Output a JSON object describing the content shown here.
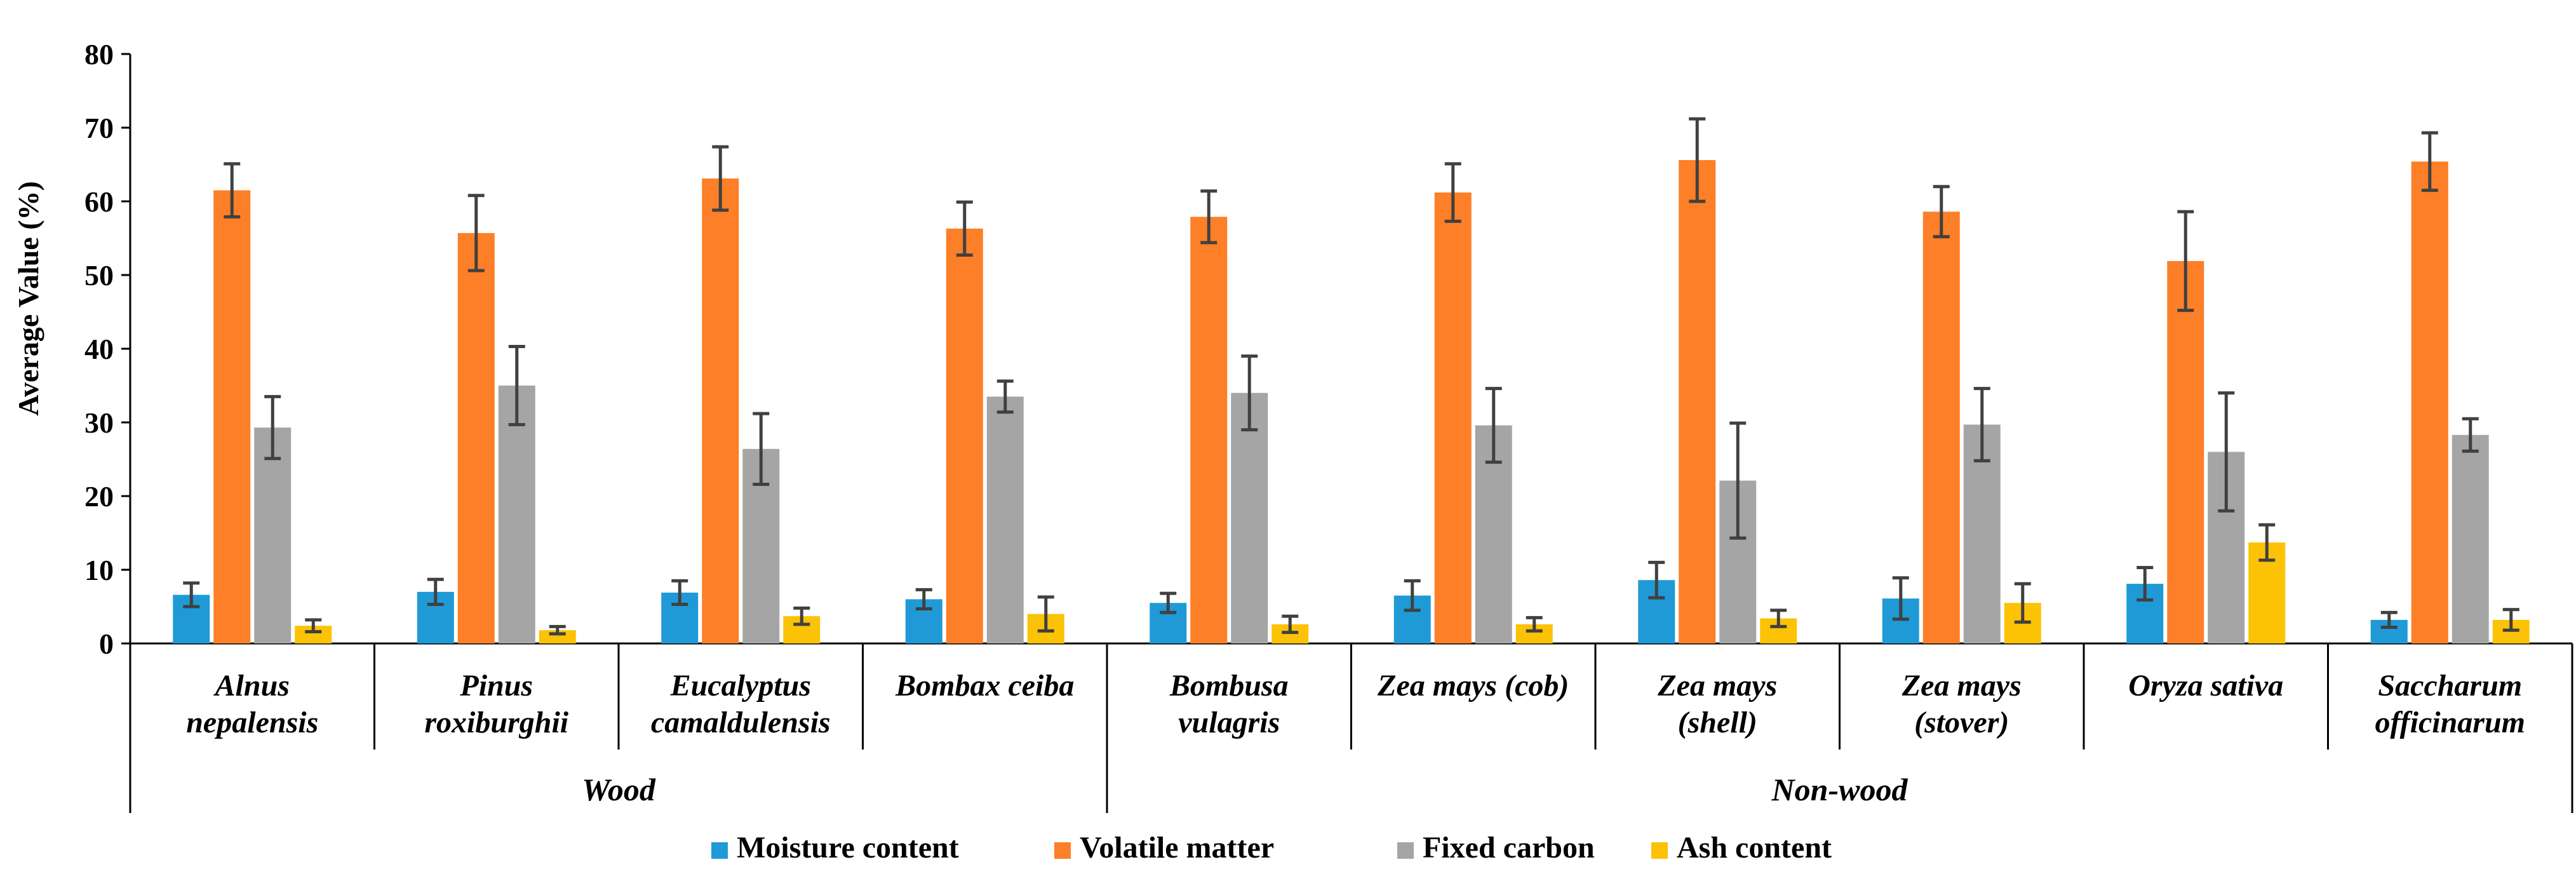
{
  "chart_data": {
    "type": "bar",
    "title": "",
    "ylabel": "Average Value (%)",
    "xlabel": "",
    "ylim": [
      0,
      80
    ],
    "yticks": [
      0,
      10,
      20,
      30,
      40,
      50,
      60,
      70,
      80
    ],
    "grid": false,
    "legend_position": "bottom",
    "categories": [
      "Alnus nepalensis",
      "Pinus roxiburghii",
      "Eucalyptus camaldulensis",
      "Bombax ceiba",
      "Bombusa vulagris",
      "Zea mays (cob)",
      "Zea mays (shell)",
      "Zea mays (stover)",
      "Oryza sativa",
      "Saccharum officinarum"
    ],
    "category_label_lines": [
      [
        "Alnus",
        "nepalensis"
      ],
      [
        "Pinus",
        "roxiburghii"
      ],
      [
        "Eucalyptus",
        "camaldulensis"
      ],
      [
        "Bombax ceiba"
      ],
      [
        "Bombusa",
        "vulagris"
      ],
      [
        "Zea mays (cob)"
      ],
      [
        "Zea mays",
        "(shell)"
      ],
      [
        "Zea mays",
        "(stover)"
      ],
      [
        "Oryza sativa"
      ],
      [
        "Saccharum",
        "officinarum"
      ]
    ],
    "groups": [
      {
        "name": "Wood",
        "categories": [
          0,
          1,
          2,
          3
        ]
      },
      {
        "name": "Non-wood",
        "categories": [
          4,
          5,
          6,
          7,
          8,
          9
        ]
      }
    ],
    "series": [
      {
        "name": "Moisture content",
        "color": "#1f9ad6",
        "values": [
          6.6,
          7.0,
          6.9,
          6.0,
          5.5,
          6.5,
          8.6,
          6.1,
          8.1,
          3.2
        ],
        "errors": [
          1.6,
          1.7,
          1.6,
          1.3,
          1.3,
          2.0,
          2.4,
          2.8,
          2.2,
          1.0
        ]
      },
      {
        "name": "Volatile matter",
        "color": "#fd7f27",
        "values": [
          61.5,
          55.7,
          63.1,
          56.3,
          57.9,
          61.2,
          65.6,
          58.6,
          51.9,
          65.4
        ],
        "errors": [
          3.6,
          5.1,
          4.3,
          3.6,
          3.5,
          3.9,
          5.6,
          3.4,
          6.7,
          3.9
        ]
      },
      {
        "name": "Fixed carbon",
        "color": "#a5a5a5",
        "values": [
          29.3,
          35.0,
          26.4,
          33.5,
          34.0,
          29.6,
          22.1,
          29.7,
          26.0,
          28.3
        ],
        "errors": [
          4.2,
          5.3,
          4.8,
          2.1,
          5.0,
          5.0,
          7.8,
          4.9,
          8.0,
          2.2
        ]
      },
      {
        "name": "Ash content",
        "color": "#fcc205",
        "values": [
          2.4,
          1.8,
          3.7,
          4.0,
          2.6,
          2.6,
          3.4,
          5.5,
          13.7,
          3.2
        ],
        "errors": [
          0.8,
          0.5,
          1.1,
          2.3,
          1.1,
          0.9,
          1.1,
          2.6,
          2.4,
          1.4
        ]
      }
    ]
  }
}
